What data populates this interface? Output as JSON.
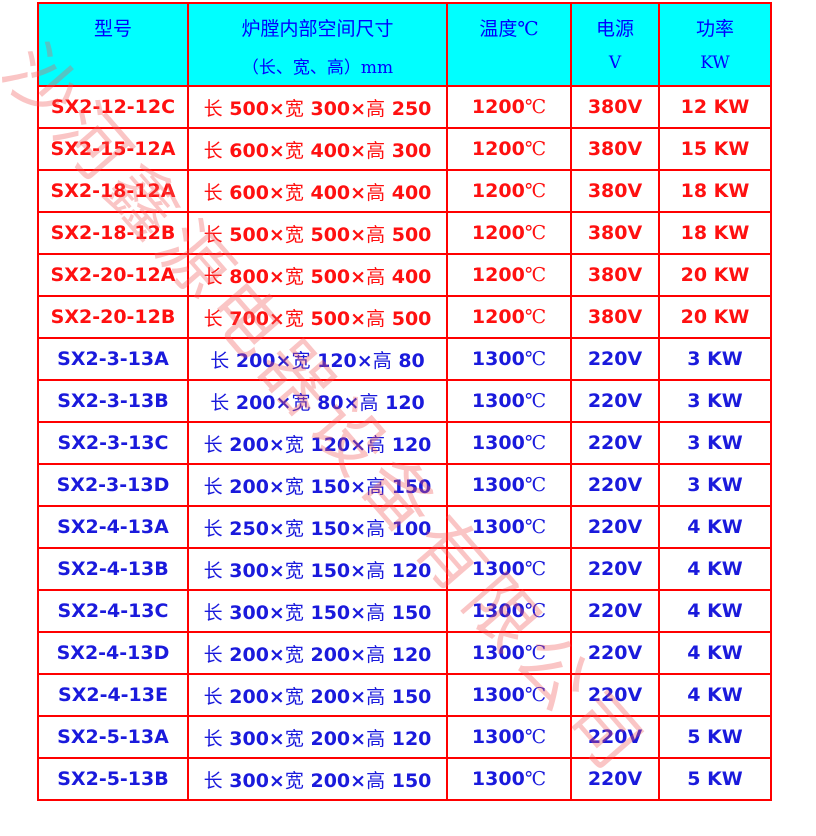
{
  "header": {
    "model": "型号",
    "size": "炉膛内部空间尺寸",
    "size_unit": "（长、宽、高）mm",
    "temp": "温度℃",
    "power_supply": "电源",
    "power_supply_unit": "V",
    "power": "功率",
    "power_unit": "KW"
  },
  "colors": {
    "red_rows": "#ff1010",
    "blue_rows": "#1a1adc",
    "header_bg": "#00ffff",
    "border": "#ff0000"
  },
  "watermark": "沙河鑫源电器设备有限公司",
  "rows": [
    {
      "model": "SX2-12-12C",
      "l": "500",
      "w": "300",
      "h": "250",
      "temp": "1200",
      "volt": "380V",
      "power": "12 KW",
      "color": "red"
    },
    {
      "model": "SX2-15-12A",
      "l": "600",
      "w": "400",
      "h": "300",
      "temp": "1200",
      "volt": "380V",
      "power": "15 KW",
      "color": "red"
    },
    {
      "model": "SX2-18-12A",
      "l": "600",
      "w": "400",
      "h": "400",
      "temp": "1200",
      "volt": "380V",
      "power": "18 KW",
      "color": "red"
    },
    {
      "model": "SX2-18-12B",
      "l": "500",
      "w": "500",
      "h": "500",
      "temp": "1200",
      "volt": "380V",
      "power": "18 KW",
      "color": "red"
    },
    {
      "model": "SX2-20-12A",
      "l": "800",
      "w": "500",
      "h": "400",
      "temp": "1200",
      "volt": "380V",
      "power": "20 KW",
      "color": "red"
    },
    {
      "model": "SX2-20-12B",
      "l": "700",
      "w": "500",
      "h": "500",
      "temp": "1200",
      "volt": "380V",
      "power": "20 KW",
      "color": "red"
    },
    {
      "model": "SX2-3-13A",
      "l": "200",
      "w": "120",
      "h": "80",
      "temp": "1300",
      "volt": "220V",
      "power": "3 KW",
      "color": "blue"
    },
    {
      "model": "SX2-3-13B",
      "l": "200",
      "w": "80",
      "h": "120",
      "temp": "1300",
      "volt": "220V",
      "power": "3 KW",
      "color": "blue"
    },
    {
      "model": "SX2-3-13C",
      "l": "200",
      "w": "120",
      "h": "120",
      "temp": "1300",
      "volt": "220V",
      "power": "3 KW",
      "color": "blue"
    },
    {
      "model": "SX2-3-13D",
      "l": "200",
      "w": "150",
      "h": "150",
      "temp": "1300",
      "volt": "220V",
      "power": "3 KW",
      "color": "blue"
    },
    {
      "model": "SX2-4-13A",
      "l": "250",
      "w": "150",
      "h": "100",
      "temp": "1300",
      "volt": "220V",
      "power": "4 KW",
      "color": "blue"
    },
    {
      "model": "SX2-4-13B",
      "l": "300",
      "w": "150",
      "h": "120",
      "temp": "1300",
      "volt": "220V",
      "power": "4 KW",
      "color": "blue"
    },
    {
      "model": "SX2-4-13C",
      "l": "300",
      "w": "150",
      "h": "150",
      "temp": "1300",
      "volt": "220V",
      "power": "4 KW",
      "color": "blue"
    },
    {
      "model": "SX2-4-13D",
      "l": "200",
      "w": "200",
      "h": "120",
      "temp": "1300",
      "volt": "220V",
      "power": "4 KW",
      "color": "blue"
    },
    {
      "model": "SX2-4-13E",
      "l": "200",
      "w": "200",
      "h": "150",
      "temp": "1300",
      "volt": "220V",
      "power": "4 KW",
      "color": "blue"
    },
    {
      "model": "SX2-5-13A",
      "l": "300",
      "w": "200",
      "h": "120",
      "temp": "1300",
      "volt": "220V",
      "power": "5 KW",
      "color": "blue"
    },
    {
      "model": "SX2-5-13B",
      "l": "300",
      "w": "200",
      "h": "150",
      "temp": "1300",
      "volt": "220V",
      "power": "5 KW",
      "color": "blue"
    }
  ],
  "labels": {
    "length": "长",
    "width": "宽",
    "height": "高",
    "times": "×",
    "celsius": "℃"
  }
}
